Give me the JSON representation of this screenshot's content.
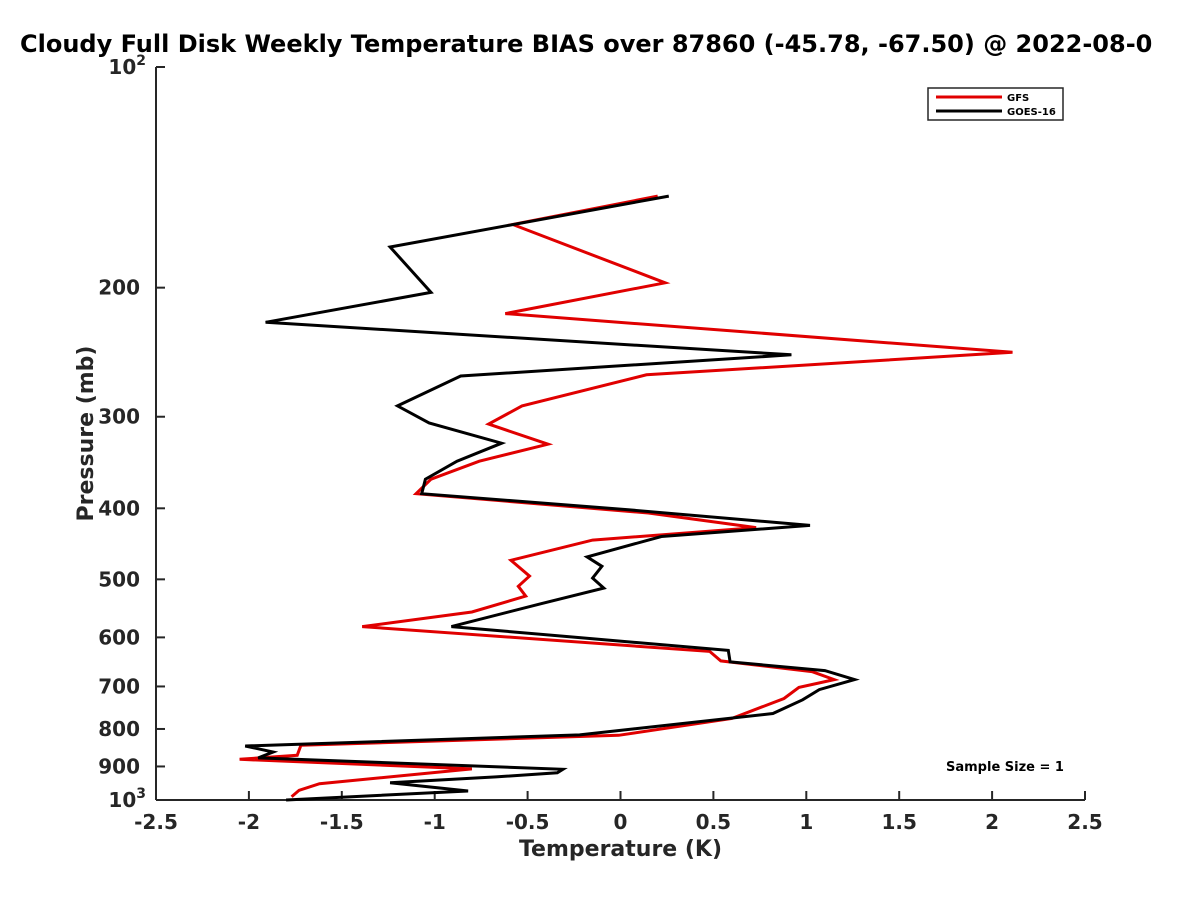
{
  "chart_data": {
    "type": "line",
    "title": "Cloudy Full Disk Weekly Temperature BIAS over 87860 (-45.78, -67.50) @ 2022-08-0",
    "xlabel": "Temperature (K)",
    "ylabel": "Pressure (mb)",
    "xlim": [
      -2.5,
      2.5
    ],
    "ylim": [
      100,
      1000
    ],
    "y_scale": "log",
    "y_reversed": true,
    "grid": false,
    "legend_position": "top-right",
    "x_ticks": [
      "-2.5",
      "-2",
      "-1.5",
      "-1",
      "-0.5",
      "0",
      "0.5",
      "1",
      "1.5",
      "2",
      "2.5"
    ],
    "y_ticks": [
      {
        "value": 100,
        "base": "10",
        "exp": "2"
      },
      {
        "value": 200,
        "label": "200"
      },
      {
        "value": 300,
        "label": "300"
      },
      {
        "value": 400,
        "label": "400"
      },
      {
        "value": 500,
        "label": "500"
      },
      {
        "value": 600,
        "label": "600"
      },
      {
        "value": 700,
        "label": "700"
      },
      {
        "value": 800,
        "label": "800"
      },
      {
        "value": 900,
        "label": "900"
      },
      {
        "value": 1000,
        "base": "10",
        "exp": "3"
      }
    ],
    "series": [
      {
        "name": "GFS",
        "color": "#e00000",
        "points": [
          [
            0.2,
            150
          ],
          [
            -0.58,
            164
          ],
          [
            0.24,
            197
          ],
          [
            -0.62,
            217
          ],
          [
            2.11,
            245
          ],
          [
            0.14,
            263
          ],
          [
            -0.53,
            290
          ],
          [
            -0.71,
            307
          ],
          [
            -0.39,
            327
          ],
          [
            -0.76,
            345
          ],
          [
            -1.02,
            365
          ],
          [
            -1.1,
            382
          ],
          [
            0.15,
            406
          ],
          [
            0.73,
            425
          ],
          [
            -0.15,
            442
          ],
          [
            -0.59,
            471
          ],
          [
            -0.49,
            495
          ],
          [
            -0.55,
            511
          ],
          [
            -0.51,
            527
          ],
          [
            -0.8,
            554
          ],
          [
            -1.39,
            580
          ],
          [
            0.48,
            627
          ],
          [
            0.54,
            646
          ],
          [
            1.03,
            668
          ],
          [
            1.15,
            685
          ],
          [
            0.96,
            702
          ],
          [
            0.88,
            727
          ],
          [
            0.6,
            774
          ],
          [
            -0.01,
            816
          ],
          [
            -1.72,
            842
          ],
          [
            -1.74,
            869
          ],
          [
            -2.05,
            880
          ],
          [
            -0.8,
            907
          ],
          [
            -1.62,
            950
          ],
          [
            -1.73,
            970
          ],
          [
            -1.77,
            990
          ]
        ]
      },
      {
        "name": "GOES-16",
        "color": "#000000",
        "points": [
          [
            0.26,
            150
          ],
          [
            -1.24,
            176
          ],
          [
            -1.02,
            203
          ],
          [
            -1.91,
            223
          ],
          [
            0.92,
            247
          ],
          [
            -0.86,
            264
          ],
          [
            -1.2,
            290
          ],
          [
            -1.03,
            306
          ],
          [
            -0.64,
            326
          ],
          [
            -0.88,
            345
          ],
          [
            -1.05,
            365
          ],
          [
            -1.07,
            382
          ],
          [
            0.05,
            402
          ],
          [
            1.02,
            422
          ],
          [
            0.22,
            437
          ],
          [
            -0.18,
            466
          ],
          [
            -0.1,
            480
          ],
          [
            -0.15,
            498
          ],
          [
            -0.09,
            514
          ],
          [
            -0.43,
            540
          ],
          [
            -0.91,
            580
          ],
          [
            0.58,
            625
          ],
          [
            0.59,
            648
          ],
          [
            1.1,
            666
          ],
          [
            1.26,
            685
          ],
          [
            1.07,
            707
          ],
          [
            0.98,
            730
          ],
          [
            0.82,
            762
          ],
          [
            -0.22,
            815
          ],
          [
            -2.02,
            844
          ],
          [
            -1.87,
            860
          ],
          [
            -1.95,
            876
          ],
          [
            -0.31,
            908
          ],
          [
            -0.34,
            918
          ],
          [
            -0.67,
            930
          ],
          [
            -1.24,
            947
          ],
          [
            -0.82,
            972
          ],
          [
            -1.8,
            1000
          ]
        ]
      }
    ],
    "annotations": [
      "Sample Size = 1"
    ]
  }
}
